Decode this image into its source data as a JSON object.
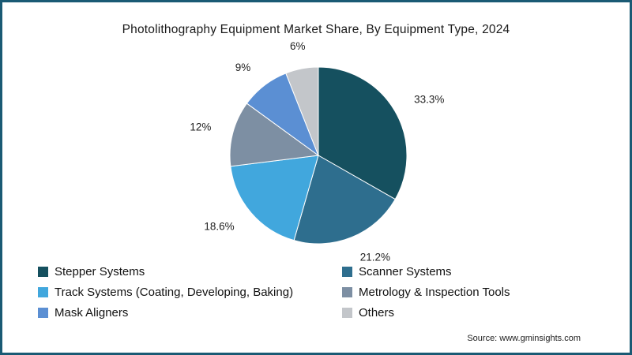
{
  "title": "Photolithography Equipment Market Share, By Equipment Type, 2024",
  "source": "Source: www.gminsights.com",
  "frame_color": "#1a5a74",
  "chart_data": {
    "type": "pie",
    "title": "Photolithography Equipment Market Share, By Equipment Type, 2024",
    "values_unit": "%",
    "start_angle_deg": -90,
    "direction": "clockwise",
    "legend_position": "bottom",
    "legend_columns": 2,
    "slices": [
      {
        "label": "Stepper Systems",
        "value": 33.3,
        "display": "33.3%",
        "color": "#15505f"
      },
      {
        "label": "Scanner Systems",
        "value": 21.2,
        "display": "21.2%",
        "color": "#2e6e8e"
      },
      {
        "label": "Track Systems (Coating, Developing, Baking)",
        "value": 18.6,
        "display": "18.6%",
        "color": "#41a7dd"
      },
      {
        "label": "Metrology & Inspection Tools",
        "value": 12,
        "display": "12%",
        "color": "#7d8fa3"
      },
      {
        "label": "Mask Aligners",
        "value": 9,
        "display": "9%",
        "color": "#5b8fd3"
      },
      {
        "label": "Others",
        "value": 6,
        "display": "6%",
        "color": "#c3c6ca"
      }
    ]
  }
}
